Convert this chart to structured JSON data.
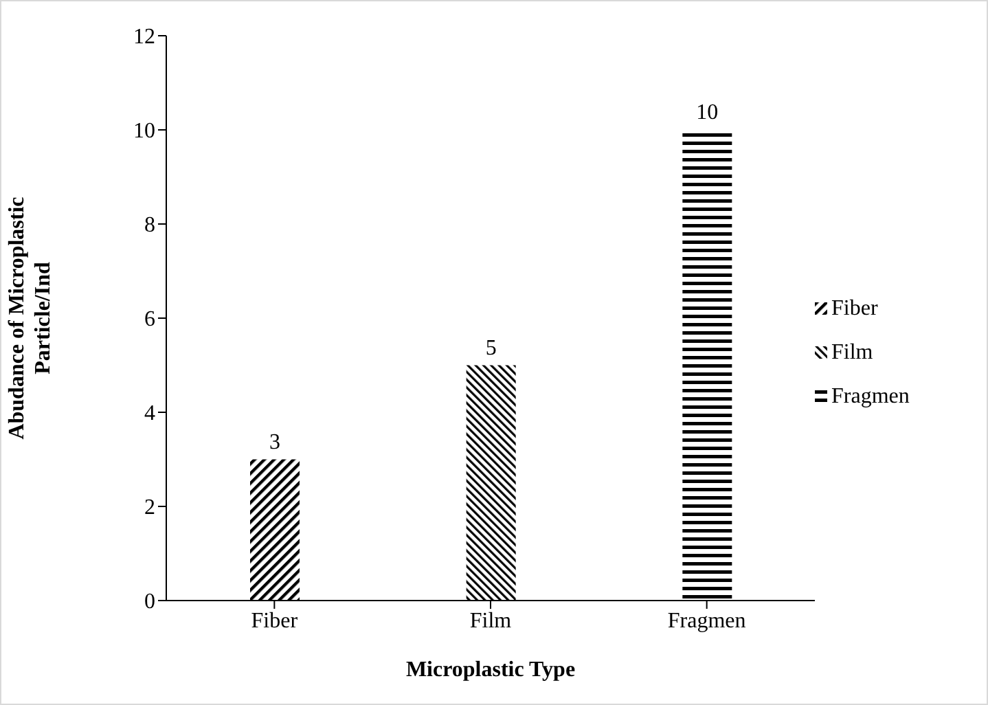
{
  "chart_data": {
    "type": "bar",
    "xlabel": "Microplastic Type",
    "ylabel": "Abudance of Microplastic Particle/Ind",
    "categories": [
      "Fiber",
      "Film",
      "Fragmen"
    ],
    "series": [
      {
        "name": "Fiber",
        "color": "#000000",
        "values": [
          3,
          null,
          null
        ]
      },
      {
        "name": "Film",
        "color": "#000000",
        "values": [
          null,
          5,
          null
        ]
      },
      {
        "name": "Fragmen",
        "color": "#000000",
        "values": [
          null,
          null,
          10
        ]
      }
    ],
    "ylim": [
      0,
      12
    ],
    "yticks": [
      0,
      2,
      4,
      6,
      8,
      10,
      12
    ],
    "data_labels": true,
    "legend": "right",
    "grid": false
  }
}
